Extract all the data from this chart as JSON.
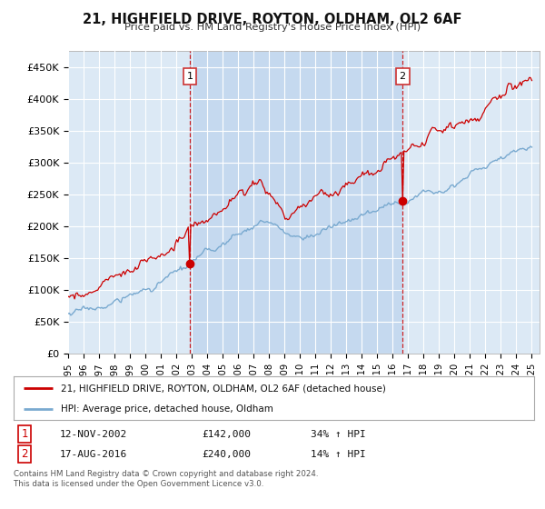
{
  "title": "21, HIGHFIELD DRIVE, ROYTON, OLDHAM, OL2 6AF",
  "subtitle": "Price paid vs. HM Land Registry's House Price Index (HPI)",
  "ylabel_ticks": [
    "£0",
    "£50K",
    "£100K",
    "£150K",
    "£200K",
    "£250K",
    "£300K",
    "£350K",
    "£400K",
    "£450K"
  ],
  "ytick_values": [
    0,
    50000,
    100000,
    150000,
    200000,
    250000,
    300000,
    350000,
    400000,
    450000
  ],
  "ylim": [
    0,
    475000
  ],
  "xlim_start": 1995.0,
  "xlim_end": 2025.5,
  "background_color": "#ffffff",
  "plot_bg_color": "#dce9f5",
  "shaded_bg_color": "#c5d9ef",
  "grid_color": "#ffffff",
  "red_line_color": "#cc0000",
  "blue_line_color": "#7aaad0",
  "marker1_date": 2002.87,
  "marker2_date": 2016.63,
  "marker1_value": 142000,
  "marker2_value": 240000,
  "legend_label1": "21, HIGHFIELD DRIVE, ROYTON, OLDHAM, OL2 6AF (detached house)",
  "legend_label2": "HPI: Average price, detached house, Oldham",
  "footer_line1": "Contains HM Land Registry data © Crown copyright and database right 2024.",
  "footer_line2": "This data is licensed under the Open Government Licence v3.0.",
  "table_row1": [
    "1",
    "12-NOV-2002",
    "£142,000",
    "34% ↑ HPI"
  ],
  "table_row2": [
    "2",
    "17-AUG-2016",
    "£240,000",
    "14% ↑ HPI"
  ],
  "xtick_years": [
    1995,
    1996,
    1997,
    1998,
    1999,
    2000,
    2001,
    2002,
    2003,
    2004,
    2005,
    2006,
    2007,
    2008,
    2009,
    2010,
    2011,
    2012,
    2013,
    2014,
    2015,
    2016,
    2017,
    2018,
    2019,
    2020,
    2021,
    2022,
    2023,
    2024,
    2025
  ]
}
